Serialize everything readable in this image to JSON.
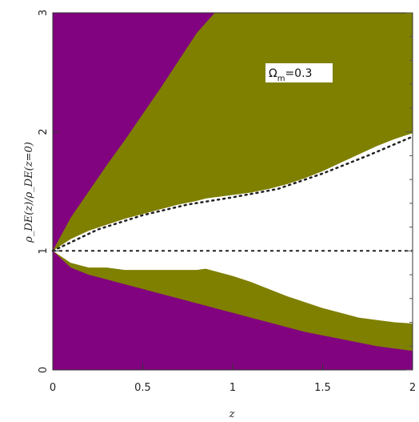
{
  "chart_data": {
    "type": "area",
    "title": "",
    "xlabel": "z",
    "ylabel": "ρ_DE(z)/ρ_DE(z=0)",
    "xlim": [
      0,
      2
    ],
    "ylim": [
      0,
      3
    ],
    "x_ticks": [
      "0",
      "0.5",
      "1",
      "1.5",
      "2"
    ],
    "y_ticks": [
      "0",
      "1",
      "2",
      "3"
    ],
    "annotation": {
      "main": "Ω",
      "subscript": "m",
      "rest": "=0.3"
    },
    "colors": {
      "outer_region": "#82037f",
      "inner_region": "#7f7f00",
      "allowed_region": "#ffffff",
      "reference_lines": "#222222"
    },
    "series": [
      {
        "x": [
          0,
          0.1,
          0.2,
          0.3,
          0.4,
          0.5,
          0.6,
          0.7,
          0.8,
          0.9,
          1.0,
          1.1,
          1.2,
          1.3,
          1.4,
          1.5,
          1.6,
          1.7,
          1.8,
          1.9,
          2.0
        ],
        "upper": [
          1.0,
          1.28,
          1.5,
          1.72,
          1.93,
          2.15,
          2.37,
          2.6,
          2.83,
          3.0,
          3.0,
          3.0,
          3.0,
          3.0,
          3.0,
          3.0,
          3.0,
          3.0,
          3.0,
          3.0,
          3.0
        ],
        "lower": [
          1.0,
          0.86,
          0.8,
          0.76,
          0.72,
          0.68,
          0.64,
          0.6,
          0.56,
          0.52,
          0.48,
          0.44,
          0.4,
          0.36,
          0.32,
          0.29,
          0.26,
          0.23,
          0.2,
          0.18,
          0.16
        ]
      },
      {
        "x": [
          0,
          0.1,
          0.2,
          0.3,
          0.4,
          0.5,
          0.6,
          0.7,
          0.8,
          0.85,
          0.9,
          1.0,
          1.1,
          1.2,
          1.3,
          1.4,
          1.5,
          1.6,
          1.7,
          1.8,
          1.9,
          2.0
        ],
        "upper": [
          1.0,
          1.1,
          1.17,
          1.22,
          1.27,
          1.31,
          1.35,
          1.39,
          1.42,
          1.44,
          1.45,
          1.47,
          1.49,
          1.52,
          1.56,
          1.61,
          1.67,
          1.74,
          1.81,
          1.88,
          1.94,
          1.99
        ],
        "lower": [
          1.0,
          0.9,
          0.86,
          0.86,
          0.84,
          0.84,
          0.84,
          0.84,
          0.84,
          0.85,
          0.83,
          0.79,
          0.74,
          0.68,
          0.62,
          0.57,
          0.52,
          0.48,
          0.44,
          0.42,
          0.4,
          0.39
        ]
      },
      {
        "x": [
          0,
          0.25,
          0.5,
          0.75,
          1.0,
          1.25,
          1.5,
          1.75,
          2.0
        ],
        "values": [
          1.0,
          1.18,
          1.3,
          1.39,
          1.45,
          1.52,
          1.65,
          1.8,
          1.96
        ]
      },
      {
        "x": [
          0,
          2
        ],
        "values": [
          1,
          1
        ]
      }
    ]
  }
}
